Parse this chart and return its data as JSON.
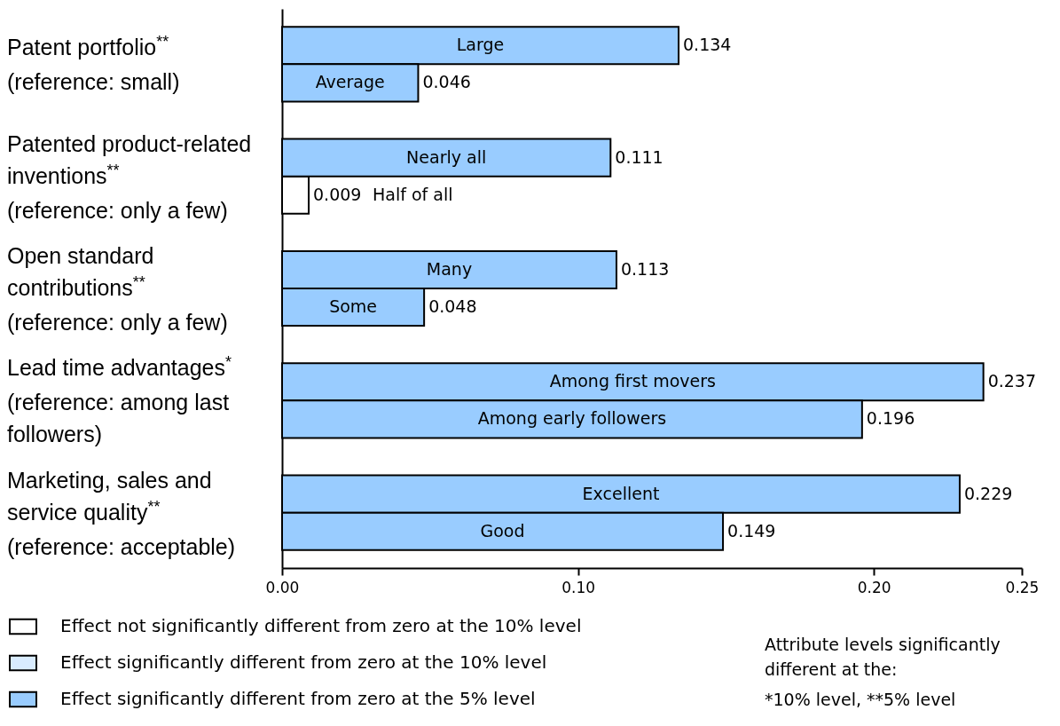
{
  "chart_data": {
    "type": "bar",
    "orientation": "horizontal",
    "categories": [
      "Large",
      "Average",
      "Nearly  all",
      "Half of all",
      "Many",
      "Some",
      "Among first movers",
      "Among early followers",
      "Excellent",
      "Good"
    ],
    "series": [
      {
        "name": "Effect not significantly different from zero at the 10% level",
        "color": "#ffffff",
        "values": [
          null,
          null,
          null,
          0.009,
          null,
          null,
          null,
          null,
          null,
          null
        ]
      },
      {
        "name": "Effect significantly different from zero at the 10% level",
        "color": "#d9ecff",
        "values": [
          null,
          null,
          null,
          null,
          null,
          null,
          null,
          null,
          null,
          null
        ]
      },
      {
        "name": "Effect significantly different from zero at the 5% level",
        "color": "#99ccff",
        "values": [
          0.134,
          0.046,
          0.111,
          null,
          0.113,
          0.048,
          0.237,
          0.196,
          0.229,
          0.149
        ]
      }
    ],
    "xlim": [
      0,
      0.25
    ],
    "xticks": [
      {
        "value": 0,
        "label": "0.00"
      },
      {
        "value": 0.1,
        "label": "0.10"
      },
      {
        "value": 0.2,
        "label": "0.20"
      },
      {
        "value": 0.25,
        "label": "0.25"
      }
    ],
    "data_labels": true,
    "grid": false,
    "legend": "bottom left",
    "tick_labels": "x",
    "annotations": [
      "Patent portfolio$^{**}$\n(reference: small)",
      "Patented product-related\ninventions$^{**}$\n(reference: only a few)",
      "Open standard\ncontributions$^{**}$\n(reference: only a few)",
      "Lead time advantages$^{*}$\n(reference: among last\nfollowers)",
      "Marketing, sales and\nservice quality$^{**}$\n(reference: acceptable)",
      "Attribute levels significantly different at the:",
      "*10% level, **5% level"
    ]
  }
}
